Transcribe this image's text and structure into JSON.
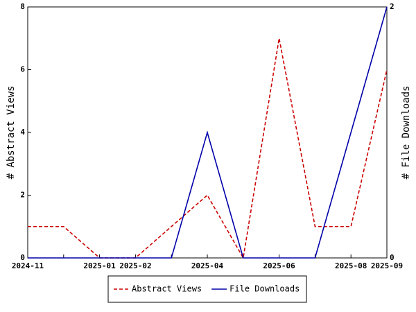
{
  "chart_data": {
    "type": "line",
    "categories": [
      "2024-11",
      null,
      "2025-01",
      "2025-02",
      null,
      "2025-04",
      null,
      "2025-06",
      null,
      "2025-08",
      "2025-09"
    ],
    "series": [
      {
        "name": "Abstract Views",
        "color": "#cc0000",
        "dash": "dashed",
        "values": [
          1,
          1,
          0,
          0,
          1,
          2,
          0,
          7,
          1,
          1,
          6
        ]
      },
      {
        "name": "File Downloads",
        "color": "#0000aa",
        "axis": "y2",
        "values": [
          0,
          0,
          0,
          0,
          0,
          1,
          0,
          0,
          0,
          1,
          2
        ]
      }
    ],
    "ylabel": "# Abstract Views",
    "y2label": "# File Downloads",
    "ylim": [
      0,
      8
    ],
    "yticks": [
      0,
      2,
      4,
      6,
      8
    ],
    "y2lim": [
      0,
      2
    ],
    "y2ticks": [
      0,
      2
    ],
    "legend": "bottom"
  }
}
